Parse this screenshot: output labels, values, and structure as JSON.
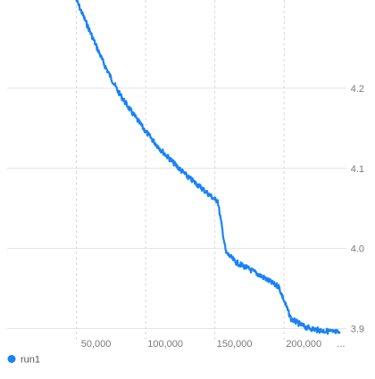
{
  "chart_data": {
    "type": "line",
    "x_ticks": [
      50000,
      100000,
      150000,
      200000
    ],
    "x_tick_labels": [
      "50,000",
      "100,000",
      "150,000",
      "200,000"
    ],
    "x_overflow_label": "...",
    "y_ticks": [
      3.9,
      4.0,
      4.1,
      4.2
    ],
    "y_tick_labels": [
      "3.9",
      "4.0",
      "4.1",
      "4.2"
    ],
    "xlim": [
      0,
      245000
    ],
    "ylim": [
      3.885,
      4.31
    ],
    "grid": true,
    "legend_position": "bottom-left",
    "series": [
      {
        "name": "run1",
        "color": "#1a82f7",
        "x": [
          50000,
          60000,
          70000,
          80000,
          90000,
          100000,
          110000,
          120000,
          130000,
          140000,
          150000,
          152000,
          158000,
          165000,
          175000,
          185000,
          193000,
          196000,
          205000,
          215000,
          225000,
          235000,
          240000
        ],
        "y": [
          4.31,
          4.27,
          4.23,
          4.196,
          4.17,
          4.146,
          4.125,
          4.107,
          4.09,
          4.076,
          4.061,
          4.06,
          3.995,
          3.983,
          3.974,
          3.964,
          3.955,
          3.953,
          3.912,
          3.902,
          3.898,
          3.896,
          3.895
        ]
      }
    ]
  }
}
